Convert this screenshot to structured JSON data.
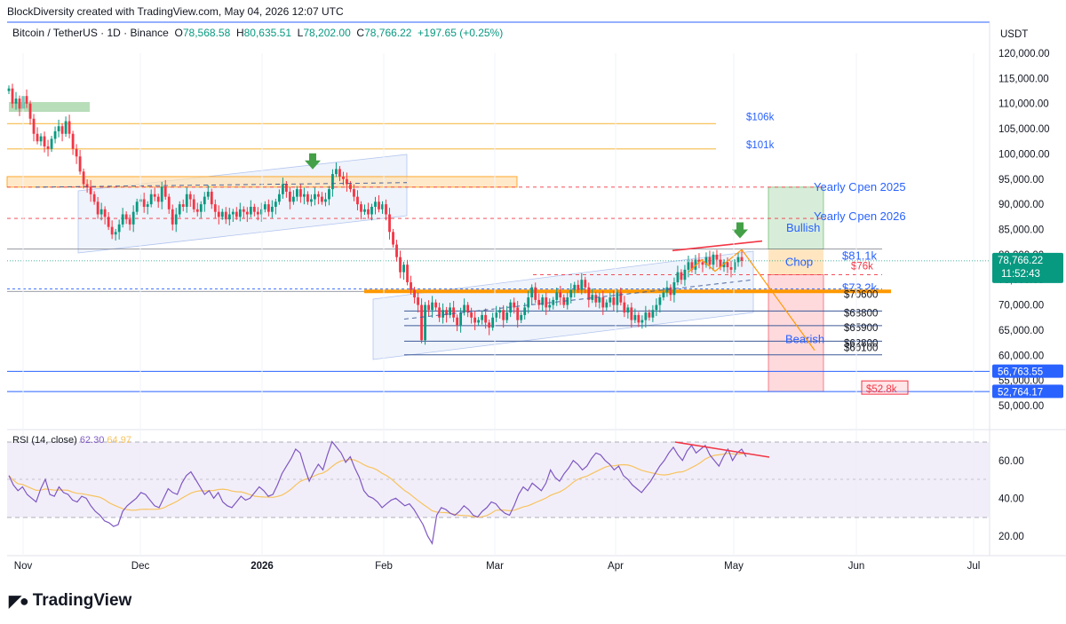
{
  "caption": "BlockDiversity created with TradingView.com, May 04, 2026 12:07 UTC",
  "symbol": {
    "name": "Bitcoin / TetherUS · 1D · Binance",
    "o_label": "O",
    "o": "78,568.58",
    "h_label": "H",
    "h": "80,635.51",
    "l_label": "L",
    "l": "78,202.00",
    "c_label": "C",
    "c": "78,766.22",
    "change": "+197.65 (+0.25%)"
  },
  "currency": "USDT",
  "brand": "TradingView",
  "rsi_legend": {
    "label": "RSI (14, close)",
    "rsi": "62.30",
    "ma": "64.97"
  },
  "colors": {
    "up": "#089981",
    "down": "#f23645",
    "rsi": "#7e57c2",
    "rsi_ma": "#f7c35f",
    "orange": "#ff9800",
    "blue": "#2962ff"
  },
  "chart_data": {
    "type": "candlestick",
    "price_axis": {
      "min": 50000,
      "max": 120000,
      "ticks": [
        "120,000.00",
        "115,000.00",
        "110,000.00",
        "105,000.00",
        "100,000.00",
        "95,000.00",
        "90,000.00",
        "85,000.00",
        "80,000.00",
        "75,000.00",
        "70,000.00",
        "65,000.00",
        "60,000.00",
        "55,000.00",
        "50,000.00"
      ]
    },
    "x_ticks": [
      "Nov",
      "Dec",
      "2026",
      "Feb",
      "Mar",
      "Apr",
      "May",
      "Jun",
      "Jul"
    ],
    "last_price": {
      "value": "78,766.22",
      "countdown": "11:52:43"
    },
    "price_badges": [
      {
        "value": "56,763.55"
      },
      {
        "value": "52,764.17"
      }
    ],
    "closes": [
      113000,
      110000,
      111000,
      109000,
      111500,
      110000,
      107000,
      104000,
      102500,
      103500,
      101500,
      101000,
      103000,
      104500,
      105500,
      104000,
      106500,
      104000,
      101000,
      99500,
      96500,
      94000,
      93500,
      92000,
      90500,
      88000,
      89000,
      87500,
      85500,
      84000,
      84500,
      86000,
      88000,
      87000,
      86000,
      88500,
      90500,
      91000,
      89500,
      90000,
      92000,
      91500,
      90500,
      93500,
      91500,
      89000,
      86000,
      88000,
      90000,
      89500,
      92000,
      91000,
      89000,
      88500,
      90000,
      91500,
      92500,
      90000,
      88500,
      87500,
      88500,
      87000,
      88000,
      88500,
      87500,
      89000,
      88500,
      88000,
      89500,
      88500,
      88000,
      89000,
      90000,
      88500,
      89500,
      90500,
      92000,
      94000,
      92500,
      90500,
      91500,
      93000,
      91500,
      92000,
      90500,
      91000,
      92000,
      91500,
      90500,
      91000,
      93000,
      96000,
      97000,
      95500,
      95000,
      94000,
      93000,
      91500,
      90000,
      88500,
      89000,
      88000,
      89500,
      90500,
      89000,
      90000,
      88000,
      84500,
      82000,
      79500,
      76500,
      78000,
      74500,
      73000,
      71500,
      70000,
      63000,
      70000,
      69000,
      70500,
      69500,
      67500,
      69000,
      68000,
      69500,
      67500,
      66000,
      68500,
      70000,
      68500,
      67500,
      66500,
      67000,
      68000,
      66500,
      65500,
      67500,
      68500,
      69000,
      67000,
      68500,
      70500,
      69500,
      67000,
      68000,
      69500,
      71500,
      73500,
      71000,
      70000,
      71500,
      69500,
      70000,
      71000,
      72500,
      71500,
      70000,
      71500,
      73000,
      74000,
      73000,
      75000,
      73500,
      71000,
      72000,
      70500,
      71500,
      69500,
      70500,
      71500,
      70000,
      72500,
      70500,
      68500,
      69500,
      67000,
      68000,
      66500,
      67000,
      68500,
      67500,
      69000,
      70000,
      71500,
      72500,
      73500,
      72000,
      74500,
      76500,
      75000,
      77000,
      78500,
      77000,
      79000,
      78500,
      78000,
      79500,
      78000,
      80000,
      79000,
      77500,
      78500,
      77500,
      77000,
      78500,
      79500,
      78766
    ],
    "rsi": [
      52,
      47,
      44,
      46,
      42,
      40,
      38,
      45,
      50,
      42,
      41,
      46,
      43,
      42,
      39,
      38,
      41,
      40,
      36,
      33,
      31,
      28,
      27,
      25,
      26,
      33,
      36,
      38,
      40,
      43,
      42,
      39,
      36,
      35,
      40,
      45,
      43,
      42,
      48,
      52,
      54,
      50,
      46,
      42,
      44,
      40,
      43,
      38,
      36,
      35,
      38,
      41,
      39,
      40,
      43,
      46,
      44,
      41,
      42,
      47,
      53,
      57,
      61,
      66,
      64,
      56,
      49,
      54,
      58,
      55,
      63,
      70,
      67,
      64,
      59,
      62,
      56,
      51,
      44,
      41,
      40,
      38,
      35,
      37,
      39,
      40,
      38,
      36,
      37,
      34,
      30,
      26,
      20,
      16,
      31,
      35,
      34,
      32,
      31,
      33,
      36,
      34,
      31,
      30,
      33,
      35,
      38,
      37,
      34,
      32,
      31,
      36,
      42,
      46,
      44,
      48,
      46,
      44,
      48,
      55,
      51,
      49,
      53,
      56,
      60,
      58,
      55,
      57,
      61,
      64,
      63,
      60,
      58,
      55,
      57,
      52,
      50,
      47,
      45,
      43,
      46,
      49,
      53,
      57,
      60,
      64,
      67,
      63,
      60,
      65,
      68,
      64,
      66,
      68,
      63,
      60,
      57,
      62,
      66,
      60,
      64,
      66,
      62
    ],
    "levels": [
      {
        "label": "$106k",
        "value": 106000
      },
      {
        "label": "$101k",
        "value": 101000
      },
      {
        "label": "Yearly Open 2025",
        "value": 93400
      },
      {
        "label": "Yearly Open 2026",
        "value": 87200
      },
      {
        "label": "$81.1k",
        "value": 81100
      },
      {
        "label": "$76k",
        "value": 76000
      },
      {
        "label": "$73.2k",
        "value": 73200
      },
      {
        "label": "$70600",
        "value": 70600
      },
      {
        "label": "$68800",
        "value": 68800
      },
      {
        "label": "$65900",
        "value": 65900
      },
      {
        "label": "$62800",
        "value": 62800
      },
      {
        "label": "$60100",
        "value": 60100
      },
      {
        "label": "$52.8k",
        "value": 52800
      }
    ],
    "zones": [
      {
        "label": "Bullish",
        "from": 81100,
        "to": 93400
      },
      {
        "label": "Chop",
        "from": 76000,
        "to": 81100
      },
      {
        "label": "Bearish",
        "from": 52800,
        "to": 76000
      }
    ],
    "rsi_axis": {
      "ticks": [
        "60.00",
        "40.00",
        "20.00"
      ]
    }
  }
}
